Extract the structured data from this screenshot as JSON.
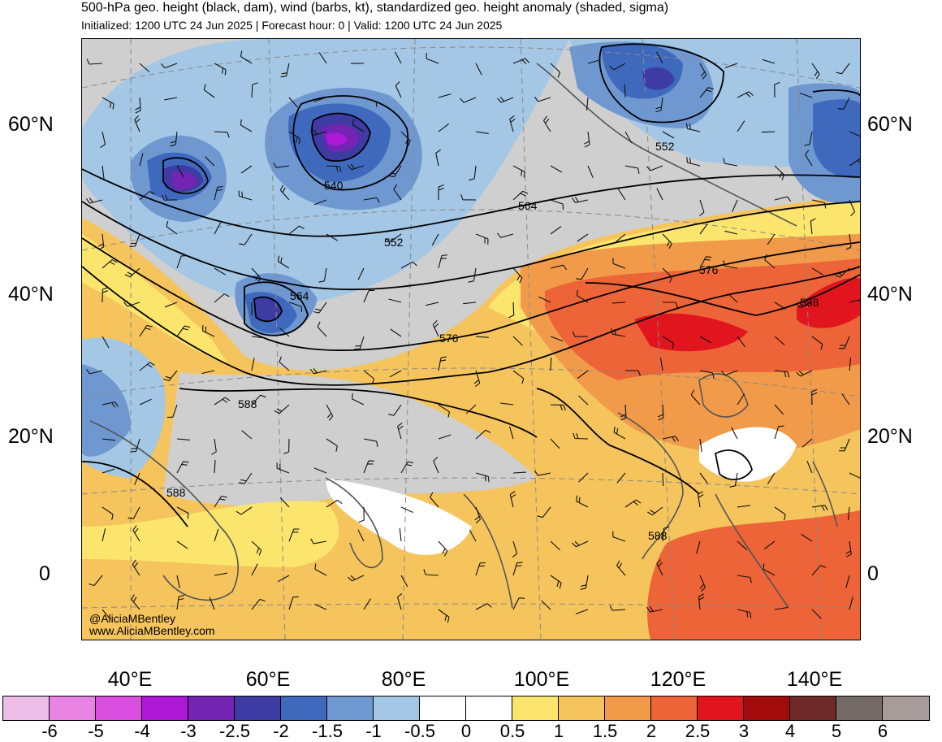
{
  "header": {
    "title": "500-hPa geo. height (black, dam), wind (barbs, kt), standardized geo. height anomaly (shaded, sigma)",
    "subtitle": "Initialized: 1200 UTC 24 Jun 2025 | Forecast hour: 0 | Valid: 1200 UTC 24 Jun 2025"
  },
  "map": {
    "latitude_labels": [
      "60°N",
      "40°N",
      "20°N",
      "0"
    ],
    "longitude_labels": [
      "40°E",
      "60°E",
      "80°E",
      "100°E",
      "120°E",
      "140°E"
    ],
    "contour_labels": [
      "540",
      "552",
      "552",
      "564",
      "564",
      "576",
      "576",
      "588",
      "588",
      "588",
      "588"
    ],
    "credits": [
      "@AliciaMBentley",
      "www.AliciaMBentley.com"
    ]
  },
  "colorbar": {
    "colors": [
      "#ebbde7",
      "#e983e4",
      "#db4fe0",
      "#ad17d6",
      "#7424b2",
      "#3e3ba3",
      "#3e69bd",
      "#6f98d1",
      "#a3c7e4",
      "#ffffff",
      "#ffffff",
      "#fbe56d",
      "#f5c45c",
      "#f19a4a",
      "#ec6437",
      "#e1151d",
      "#a30c0c",
      "#6e2a29",
      "#746a68",
      "#a89c9a"
    ],
    "labels": [
      "-6",
      "-5",
      "-4",
      "-3",
      "-2.5",
      "-2",
      "-1.5",
      "-1",
      "-0.5",
      "0",
      "0.5",
      "1",
      "1.5",
      "2",
      "2.5",
      "3",
      "4",
      "5",
      "6"
    ]
  }
}
